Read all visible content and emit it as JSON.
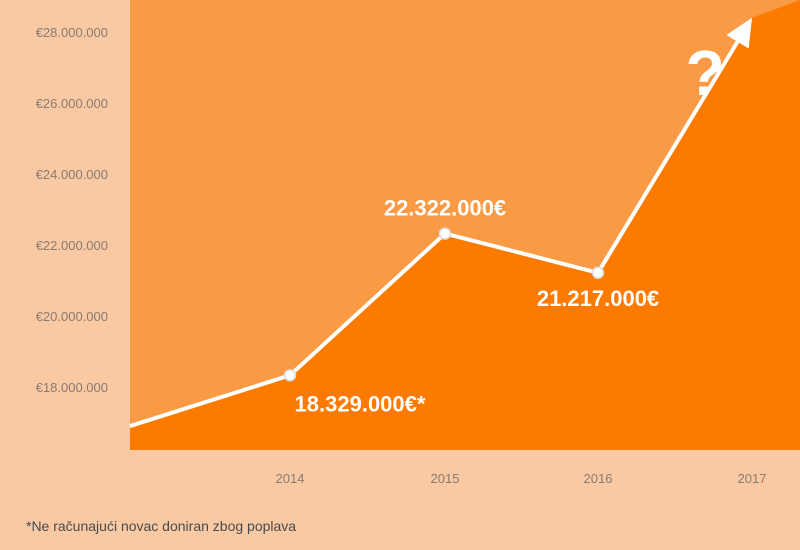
{
  "chart_data": {
    "type": "area",
    "y_ticks": [
      "€28.000.000",
      "€26.000.000",
      "€24.000.000",
      "€22.000.000",
      "€20.000.000",
      "€18.000.000"
    ],
    "y_tick_values": [
      28000000,
      26000000,
      24000000,
      22000000,
      20000000,
      18000000
    ],
    "ylim": [
      16000000,
      28700000
    ],
    "x_ticks": [
      "2014",
      "2015",
      "2016",
      "2017"
    ],
    "series": [
      {
        "x": [
          2013.05,
          2014,
          2015,
          2016,
          2017
        ],
        "values": [
          16900000,
          18329000,
          22322000,
          21217000,
          28400000
        ]
      }
    ],
    "data_labels": [
      {
        "x": 2014,
        "text": "18.329.000€*"
      },
      {
        "x": 2015,
        "text": "22.322.000€"
      },
      {
        "x": 2016,
        "text": "21.217.000€"
      }
    ],
    "annotation": "?",
    "footnote": "*Ne računajući novac doniran zbog poplava",
    "colors": {
      "page_bg": "#f9c9a3",
      "plot_bg": "#fb9a44",
      "area_fill": "#fd7a00",
      "line": "#ffffff",
      "text": "#8a7a70"
    }
  }
}
